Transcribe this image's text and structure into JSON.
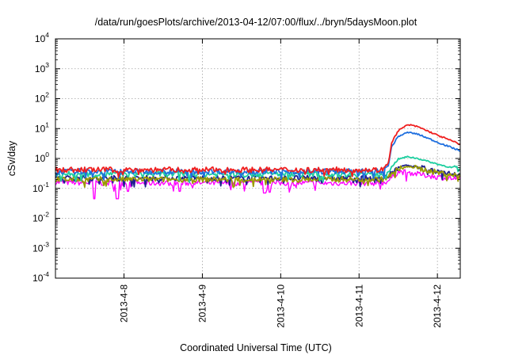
{
  "chart_data": {
    "type": "line",
    "title": "/data/run/goesPlots/archive/2013-04-12/07:00/flux/../bryn/5daysMoon.plot",
    "xlabel": "Coordinated Universal Time (UTC)",
    "ylabel": "cSv/day",
    "y_scale": "log",
    "ylim": [
      0.0001,
      10000
    ],
    "y_ticks": [
      {
        "base": "10",
        "exp": "4",
        "value": 10000
      },
      {
        "base": "10",
        "exp": "3",
        "value": 1000
      },
      {
        "base": "10",
        "exp": "2",
        "value": 100
      },
      {
        "base": "10",
        "exp": "1",
        "value": 10
      },
      {
        "base": "10",
        "exp": "0",
        "value": 1
      },
      {
        "base": "10",
        "exp": "-1",
        "value": 0.1
      },
      {
        "base": "10",
        "exp": "-2",
        "value": 0.01
      },
      {
        "base": "10",
        "exp": "-3",
        "value": 0.001
      },
      {
        "base": "10",
        "exp": "-4",
        "value": 0.0001
      }
    ],
    "xlim": [
      "2013-04-07T03:00",
      "2013-04-12T07:00"
    ],
    "x_ticks": [
      {
        "label": "2013-4-8",
        "date": "2013-04-08T00:00"
      },
      {
        "label": "2013-4-9",
        "date": "2013-04-09T00:00"
      },
      {
        "label": "2013-4-10",
        "date": "2013-04-10T00:00"
      },
      {
        "label": "2013-4-11",
        "date": "2013-04-11T00:00"
      },
      {
        "label": "2013-4-12",
        "date": "2013-04-12T00:00"
      }
    ],
    "grid": true,
    "series": [
      {
        "color": "#ff00ff",
        "x": [
          "2013-04-07T03:00",
          "2013-04-07T18:00",
          "2013-04-07T22:00",
          "2013-04-08T12:00",
          "2013-04-09T12:00",
          "2013-04-10T12:00",
          "2013-04-11T07:00",
          "2013-04-11T09:00",
          "2013-04-11T12:00",
          "2013-04-11T15:00",
          "2013-04-11T18:00",
          "2013-04-12T00:00",
          "2013-04-12T07:00"
        ],
        "y": [
          0.16,
          0.15,
          0.15,
          0.15,
          0.15,
          0.15,
          0.15,
          0.18,
          0.36,
          0.34,
          0.3,
          0.24,
          0.2
        ],
        "dips": [
          [
            "2013-04-07T15:00",
            0.045
          ],
          [
            "2013-04-07T22:00",
            0.045
          ],
          [
            "2013-04-08T01:00",
            0.08
          ],
          [
            "2013-04-09T19:00",
            0.07
          ],
          [
            "2013-04-09T20:30",
            0.075
          ],
          [
            "2013-04-08T17:00",
            0.08
          ]
        ]
      },
      {
        "color": "#1f1f8f",
        "x": [
          "2013-04-07T03:00",
          "2013-04-08T12:00",
          "2013-04-10T12:00",
          "2013-04-11T07:00",
          "2013-04-11T09:00",
          "2013-04-11T12:00",
          "2013-04-11T15:00",
          "2013-04-11T18:00",
          "2013-04-12T00:00",
          "2013-04-12T07:00"
        ],
        "y": [
          0.22,
          0.22,
          0.22,
          0.22,
          0.26,
          0.5,
          0.6,
          0.5,
          0.38,
          0.29
        ]
      },
      {
        "color": "#9a9a00",
        "x": [
          "2013-04-07T03:00",
          "2013-04-08T12:00",
          "2013-04-10T12:00",
          "2013-04-11T07:00",
          "2013-04-11T09:00",
          "2013-04-11T12:00",
          "2013-04-11T15:00",
          "2013-04-11T18:00",
          "2013-04-12T00:00",
          "2013-04-12T07:00"
        ],
        "y": [
          0.2,
          0.2,
          0.2,
          0.2,
          0.24,
          0.45,
          0.55,
          0.46,
          0.34,
          0.26
        ]
      },
      {
        "color": "#1fcfa0",
        "x": [
          "2013-04-07T03:00",
          "2013-04-08T12:00",
          "2013-04-10T12:00",
          "2013-04-11T07:00",
          "2013-04-11T09:00",
          "2013-04-11T12:00",
          "2013-04-11T15:00",
          "2013-04-11T18:00",
          "2013-04-12T00:00",
          "2013-04-12T07:00"
        ],
        "y": [
          0.3,
          0.3,
          0.3,
          0.3,
          0.4,
          0.95,
          1.15,
          1.0,
          0.65,
          0.42
        ]
      },
      {
        "color": "#1f6fdf",
        "x": [
          "2013-04-07T03:00",
          "2013-04-08T12:00",
          "2013-04-10T12:00",
          "2013-04-11T07:00",
          "2013-04-11T09:00",
          "2013-04-11T10:00",
          "2013-04-11T12:00",
          "2013-04-11T15:00",
          "2013-04-11T18:00",
          "2013-04-12T00:00",
          "2013-04-12T07:00"
        ],
        "y": [
          0.37,
          0.37,
          0.37,
          0.37,
          0.6,
          2.5,
          5.5,
          7.5,
          6.5,
          3.5,
          1.8
        ]
      },
      {
        "color": "#ef1f1f",
        "x": [
          "2013-04-07T03:00",
          "2013-04-08T12:00",
          "2013-04-10T12:00",
          "2013-04-11T07:00",
          "2013-04-11T09:00",
          "2013-04-11T10:00",
          "2013-04-11T12:00",
          "2013-04-11T15:00",
          "2013-04-11T18:00",
          "2013-04-12T00:00",
          "2013-04-12T07:00"
        ],
        "y": [
          0.42,
          0.42,
          0.42,
          0.42,
          0.7,
          3.5,
          8.5,
          13.5,
          11.5,
          6.0,
          3.0
        ]
      }
    ]
  }
}
